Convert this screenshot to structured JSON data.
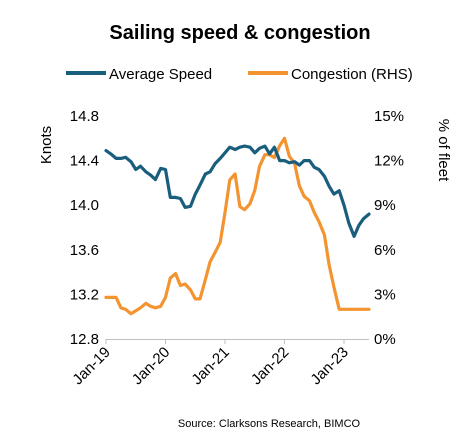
{
  "chart_data": {
    "type": "line",
    "title": "Sailing speed & congestion",
    "source": "Source: Clarksons Research, BIMCO",
    "legend_position": "top",
    "grid": false,
    "left_axis": {
      "label": "Knots",
      "range": [
        12.8,
        14.8
      ],
      "ticks": [
        12.8,
        13.2,
        13.6,
        14.0,
        14.4,
        14.8
      ],
      "tick_labels": [
        "12.8",
        "13.2",
        "13.6",
        "14.0",
        "14.4",
        "14.8"
      ]
    },
    "right_axis": {
      "label": "% of fleet",
      "range": [
        0,
        15
      ],
      "ticks": [
        0,
        3,
        6,
        9,
        12,
        15
      ],
      "tick_labels": [
        "0%",
        "3%",
        "6%",
        "9%",
        "12%",
        "15%"
      ]
    },
    "x_axis": {
      "range": [
        2019.0,
        2023.42
      ],
      "ticks": [
        2019,
        2020,
        2021,
        2022,
        2023
      ],
      "tick_labels": [
        "Jan-19",
        "Jan-20",
        "Jan-21",
        "Jan-22",
        "Jan-23"
      ]
    },
    "series": [
      {
        "name": "Average Speed",
        "axis": "left",
        "color": "#1a5e7e",
        "points": [
          [
            2019.0,
            14.49
          ],
          [
            2019.08,
            14.46
          ],
          [
            2019.17,
            14.42
          ],
          [
            2019.25,
            14.42
          ],
          [
            2019.33,
            14.43
          ],
          [
            2019.42,
            14.39
          ],
          [
            2019.5,
            14.32
          ],
          [
            2019.58,
            14.35
          ],
          [
            2019.67,
            14.3
          ],
          [
            2019.75,
            14.27
          ],
          [
            2019.83,
            14.23
          ],
          [
            2019.92,
            14.33
          ],
          [
            2020.0,
            14.32
          ],
          [
            2020.08,
            14.07
          ],
          [
            2020.17,
            14.07
          ],
          [
            2020.25,
            14.06
          ],
          [
            2020.33,
            13.98
          ],
          [
            2020.42,
            13.99
          ],
          [
            2020.5,
            14.1
          ],
          [
            2020.58,
            14.18
          ],
          [
            2020.67,
            14.28
          ],
          [
            2020.75,
            14.3
          ],
          [
            2020.83,
            14.37
          ],
          [
            2020.92,
            14.42
          ],
          [
            2021.0,
            14.47
          ],
          [
            2021.08,
            14.52
          ],
          [
            2021.17,
            14.5
          ],
          [
            2021.25,
            14.52
          ],
          [
            2021.33,
            14.53
          ],
          [
            2021.42,
            14.52
          ],
          [
            2021.5,
            14.47
          ],
          [
            2021.58,
            14.51
          ],
          [
            2021.67,
            14.53
          ],
          [
            2021.75,
            14.46
          ],
          [
            2021.83,
            14.52
          ],
          [
            2021.92,
            14.4
          ],
          [
            2022.0,
            14.4
          ],
          [
            2022.08,
            14.38
          ],
          [
            2022.17,
            14.39
          ],
          [
            2022.25,
            14.36
          ],
          [
            2022.33,
            14.4
          ],
          [
            2022.42,
            14.4
          ],
          [
            2022.5,
            14.34
          ],
          [
            2022.58,
            14.32
          ],
          [
            2022.67,
            14.26
          ],
          [
            2022.75,
            14.17
          ],
          [
            2022.83,
            14.1
          ],
          [
            2022.92,
            14.13
          ],
          [
            2023.0,
            14.0
          ],
          [
            2023.08,
            13.84
          ],
          [
            2023.17,
            13.72
          ],
          [
            2023.25,
            13.82
          ],
          [
            2023.33,
            13.88
          ],
          [
            2023.42,
            13.92
          ]
        ]
      },
      {
        "name": "Congestion (RHS)",
        "axis": "right",
        "color": "#f39430",
        "points": [
          [
            2019.0,
            2.8
          ],
          [
            2019.08,
            2.8
          ],
          [
            2019.17,
            2.8
          ],
          [
            2019.25,
            2.1
          ],
          [
            2019.33,
            2.0
          ],
          [
            2019.42,
            1.7
          ],
          [
            2019.5,
            1.9
          ],
          [
            2019.58,
            2.1
          ],
          [
            2019.67,
            2.4
          ],
          [
            2019.75,
            2.2
          ],
          [
            2019.83,
            2.1
          ],
          [
            2019.92,
            2.2
          ],
          [
            2020.0,
            2.8
          ],
          [
            2020.08,
            4.1
          ],
          [
            2020.17,
            4.4
          ],
          [
            2020.25,
            3.6
          ],
          [
            2020.33,
            3.7
          ],
          [
            2020.42,
            3.3
          ],
          [
            2020.5,
            2.7
          ],
          [
            2020.58,
            2.7
          ],
          [
            2020.67,
            4.0
          ],
          [
            2020.75,
            5.2
          ],
          [
            2020.83,
            5.8
          ],
          [
            2020.92,
            6.5
          ],
          [
            2021.0,
            8.5
          ],
          [
            2021.08,
            10.7
          ],
          [
            2021.17,
            11.1
          ],
          [
            2021.25,
            8.9
          ],
          [
            2021.33,
            8.7
          ],
          [
            2021.42,
            9.1
          ],
          [
            2021.5,
            10.0
          ],
          [
            2021.58,
            11.6
          ],
          [
            2021.67,
            12.4
          ],
          [
            2021.75,
            12.4
          ],
          [
            2021.83,
            12.2
          ],
          [
            2021.92,
            13.0
          ],
          [
            2022.0,
            13.5
          ],
          [
            2022.08,
            12.3
          ],
          [
            2022.17,
            11.8
          ],
          [
            2022.25,
            10.3
          ],
          [
            2022.33,
            9.6
          ],
          [
            2022.42,
            9.3
          ],
          [
            2022.5,
            8.5
          ],
          [
            2022.58,
            7.9
          ],
          [
            2022.67,
            7.0
          ],
          [
            2022.75,
            5.0
          ],
          [
            2022.83,
            3.5
          ],
          [
            2022.92,
            2.0
          ],
          [
            2023.0,
            2.0
          ],
          [
            2023.08,
            2.0
          ],
          [
            2023.17,
            2.0
          ],
          [
            2023.25,
            2.0
          ],
          [
            2023.33,
            2.0
          ],
          [
            2023.42,
            2.0
          ]
        ]
      }
    ]
  }
}
